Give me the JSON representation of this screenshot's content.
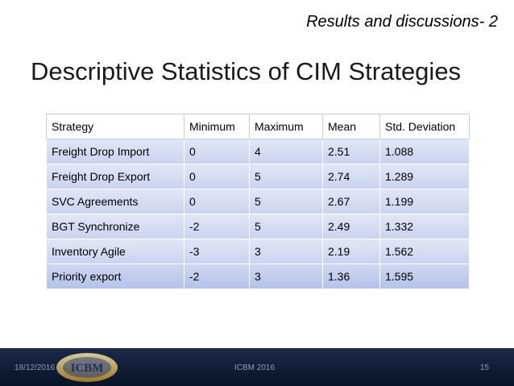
{
  "slide": {
    "header": "Results and discussions- 2",
    "title": "Descriptive Statistics of CIM Strategies"
  },
  "table": {
    "columns": [
      "Strategy",
      "Minimum",
      "Maximum",
      "Mean",
      "Std. Deviation"
    ],
    "rows": [
      [
        "Freight Drop Import",
        "0",
        "4",
        "2.51",
        "1.088"
      ],
      [
        "Freight Drop Export",
        "0",
        "5",
        "2.74",
        "1.289"
      ],
      [
        "SVC Agreements",
        "0",
        "5",
        "2.67",
        "1.199"
      ],
      [
        "BGT Synchronize",
        "-2",
        "5",
        "2.49",
        "1.332"
      ],
      [
        "Inventory Agile",
        "-3",
        "3",
        "2.19",
        "1.562"
      ],
      [
        "Priority export",
        "-2",
        "3",
        "1.36",
        "1.595"
      ]
    ]
  },
  "footer": {
    "date": "18/12/2016",
    "center": "ICBM 2016",
    "page": "15",
    "logo_text": "ICBM"
  }
}
